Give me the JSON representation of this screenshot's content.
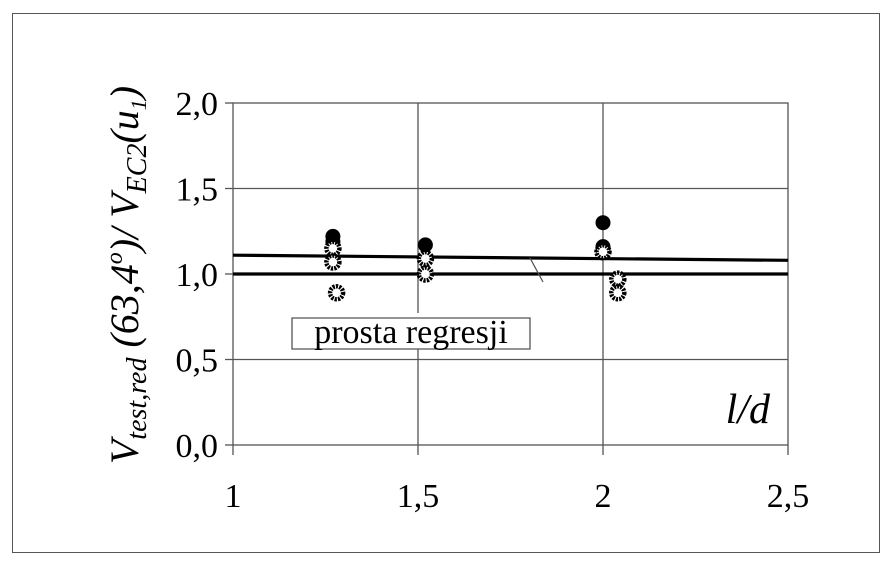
{
  "chart_data": {
    "type": "scatter",
    "title": "",
    "ylabel": {
      "main": "V",
      "sub1": "test,red",
      "mid": " (63,4",
      "sup": "o",
      "mid2": ")/ V",
      "sub2": "EC2",
      "mid3": "(u",
      "sub3": "1",
      "end": ")"
    },
    "xlabel": "l/d",
    "xlim": [
      1,
      2.5
    ],
    "ylim": [
      0,
      2
    ],
    "x_ticks": [
      "1",
      "1,5",
      "2",
      "2,5"
    ],
    "y_ticks": [
      "0,0",
      "0,5",
      "1,0",
      "1,5",
      "2,0"
    ],
    "annotation": "prosta regresji",
    "lines": [
      {
        "name": "prosta regresji",
        "x": [
          1,
          2.5
        ],
        "y": [
          1.11,
          1.08
        ]
      },
      {
        "name": "",
        "x": [
          1,
          2.5
        ],
        "y": [
          1.0,
          1.0
        ]
      }
    ],
    "series": [
      {
        "name": "",
        "marker": "filled",
        "x": [
          1.27,
          1.27,
          1.52,
          2.0,
          2.0,
          2.0
        ],
        "y": [
          1.22,
          1.19,
          1.17,
          1.3,
          1.16,
          1.14
        ]
      },
      {
        "name": "",
        "marker": "open",
        "x": [
          1.27,
          1.27,
          1.28,
          1.52,
          1.52,
          2.0,
          2.04,
          2.04
        ],
        "y": [
          1.15,
          1.07,
          0.89,
          1.09,
          1.0,
          1.13,
          0.97,
          0.89
        ]
      }
    ],
    "grid": true
  },
  "colors": {
    "ink": "#000000",
    "grid": "#555555",
    "bg": "#ffffff"
  }
}
